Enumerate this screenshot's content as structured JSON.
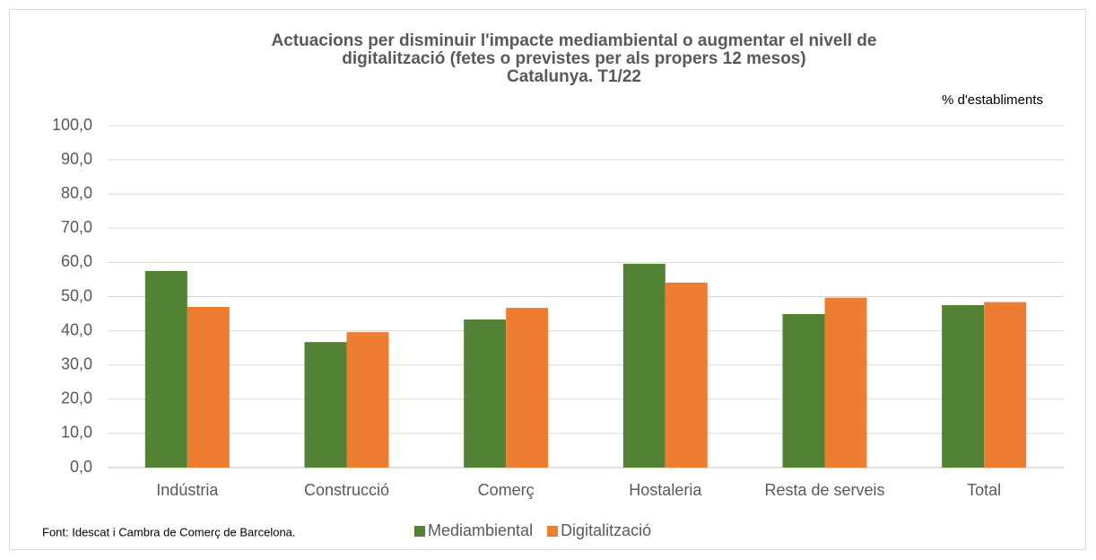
{
  "chart_data": {
    "type": "bar",
    "title": [
      "Actuacions per disminuir l'impacte mediambiental o augmentar el nivell de",
      "digitalització (fetes o previstes per als propers 12 mesos)",
      "Catalunya. T1/22"
    ],
    "unit_label": "% d'establiments",
    "source": "Font: Idescat i Cambra de Comerç de Barcelona.",
    "categories": [
      "Indústria",
      "Construcció",
      "Comerç",
      "Hostaleria",
      "Resta de serveis",
      "Total"
    ],
    "series": [
      {
        "name": "Mediambiental",
        "color": "#548235",
        "values": [
          57.5,
          36.7,
          43.3,
          59.6,
          44.9,
          47.5
        ]
      },
      {
        "name": "Digitalització",
        "color": "#ed7d31",
        "values": [
          47.0,
          39.6,
          46.7,
          54.1,
          49.7,
          48.4
        ]
      }
    ],
    "ylim": [
      0,
      100
    ],
    "yticks": [
      {
        "value": 0,
        "label": "0,0"
      },
      {
        "value": 10,
        "label": "10,0"
      },
      {
        "value": 20,
        "label": "20,0"
      },
      {
        "value": 30,
        "label": "30,0"
      },
      {
        "value": 40,
        "label": "40,0"
      },
      {
        "value": 50,
        "label": "50,0"
      },
      {
        "value": 60,
        "label": "60,0"
      },
      {
        "value": 70,
        "label": "70,0"
      },
      {
        "value": 80,
        "label": "80,0"
      },
      {
        "value": 90,
        "label": "90,0"
      },
      {
        "value": 100,
        "label": "100,0"
      }
    ],
    "grid": true,
    "legend": "bottom"
  }
}
